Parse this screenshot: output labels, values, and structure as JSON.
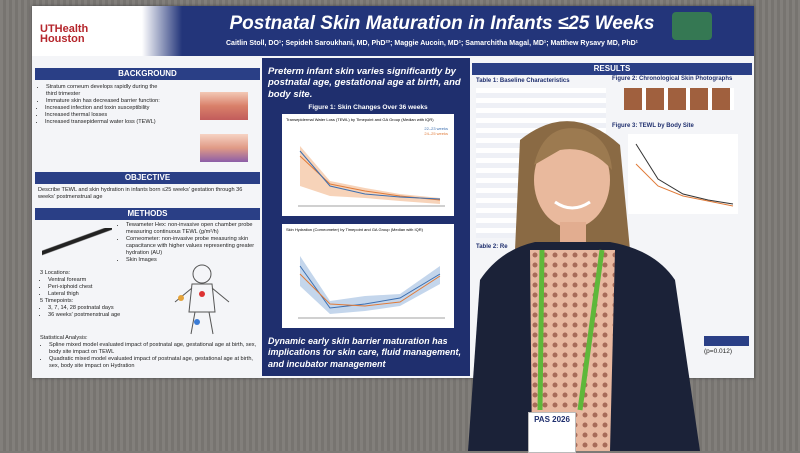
{
  "poster": {
    "logo": "UTHealth Houston",
    "title": "Postnatal Skin Maturation in Infants ≤25 Weeks",
    "authors": "Caitlin Stoll, DO¹; Sepideh Saroukhani, MD, PhD²³; Maggie Aucoin, MD¹; Samarchitha Magal, MD¹; Matthew Rysavy MD, PhD¹",
    "background": {
      "heading": "BACKGROUND",
      "bullets": [
        "Stratum corneum develops rapidly during the third trimester",
        "Immature skin has decreased barrier function:",
        "Increased infection and toxin susceptibility",
        "Increased thermal losses",
        "Increased transepidermal water loss (TEWL)"
      ]
    },
    "objective": {
      "heading": "OBJECTIVE",
      "text": "Describe TEWL and skin hydration in infants born ≤25 weeks' gestation through 36 weeks' postmenstrual age"
    },
    "methods": {
      "heading": "METHODS",
      "devices": [
        "Tewameter Hex: non-invasive open chamber probe measuring continuous TEWL (g/m²/h)",
        "Corneometer: non-invasive probe measuring skin capacitance with higher values representing greater hydration (AU)",
        "Skin Images"
      ],
      "locations_heading": "3 Locations:",
      "locations": [
        "Ventral forearm",
        "Peri-xiphoid chest",
        "Lateral thigh"
      ],
      "timepoints_heading": "5 Timepoints:",
      "timepoints": [
        "3, 7, 14, 28 postnatal days",
        "36 weeks' postmenstrual age"
      ],
      "analysis_heading": "Statistical Analysis:",
      "analysis": [
        "Spline mixed model evaluated impact of postnatal age, gestational age at birth, sex, body site impact on TEWL",
        "Quadratic mixed model evaluated impact of postnatal age, gestational age at birth, sex, body site impact on Hydration"
      ]
    },
    "center": {
      "lead": "Preterm infant skin varies significantly by postnatal age, gestational age at birth, and body site.",
      "figure_title": "Figure 1: Skin Changes Over 36 weeks",
      "chart1_title": "Transepidermal Water Loss (TEWL) by Timepoint and GA Group (Median with IQR)",
      "chart2_title": "Skin Hydration (Corneometer) by Timepoint and GA Group (Median with IQR)",
      "legend": [
        "22–23 weeks",
        "24–25 weeks"
      ],
      "conclusion": "Dynamic early skin barrier maturation has implications for skin care, fluid management, and incubator management"
    },
    "results": {
      "heading": "RESULTS",
      "table1": "Table 1: Baseline Characteristics",
      "figure2": "Figure 2: Chronological Skin Photographs",
      "figure3": "Figure 3: TEWL by Body Site",
      "table2": "Table 2: Re",
      "pvalue": "(p=0.012)"
    }
  },
  "badge": "PAS 2026"
}
